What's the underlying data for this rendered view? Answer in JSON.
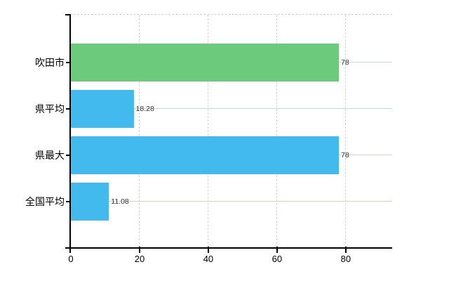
{
  "chart_data": {
    "type": "bar",
    "orientation": "horizontal",
    "title": "",
    "xlabel": "",
    "ylabel": "",
    "categories": [
      "吹田市",
      "県平均",
      "県最大",
      "全国平均"
    ],
    "values": [
      78,
      18.28,
      78,
      11.08
    ],
    "value_labels": [
      "78",
      "18.28",
      "78",
      "11.08"
    ],
    "bar_colors": [
      "#6cca7d",
      "#43baee",
      "#43baee",
      "#43baee"
    ],
    "x_ticks": [
      0,
      20,
      40,
      60,
      80
    ],
    "x_tick_labels": [
      "0",
      "20",
      "40",
      "60",
      "80"
    ],
    "xlim": [
      0,
      93.5
    ],
    "grid": true,
    "grid_vertical_style": "dashed",
    "grid_horizontal_style": "solid",
    "legend": false
  },
  "colors": {
    "background": "#ffffff",
    "bar_green": "#6cca7d",
    "bar_blue": "#43baee",
    "axis": "#000000",
    "grid_vertical": "#d4d4d4",
    "grid_horizontal": "#cfd5cf",
    "value_label_text": "#333333",
    "tick_label_text": "#000000"
  }
}
